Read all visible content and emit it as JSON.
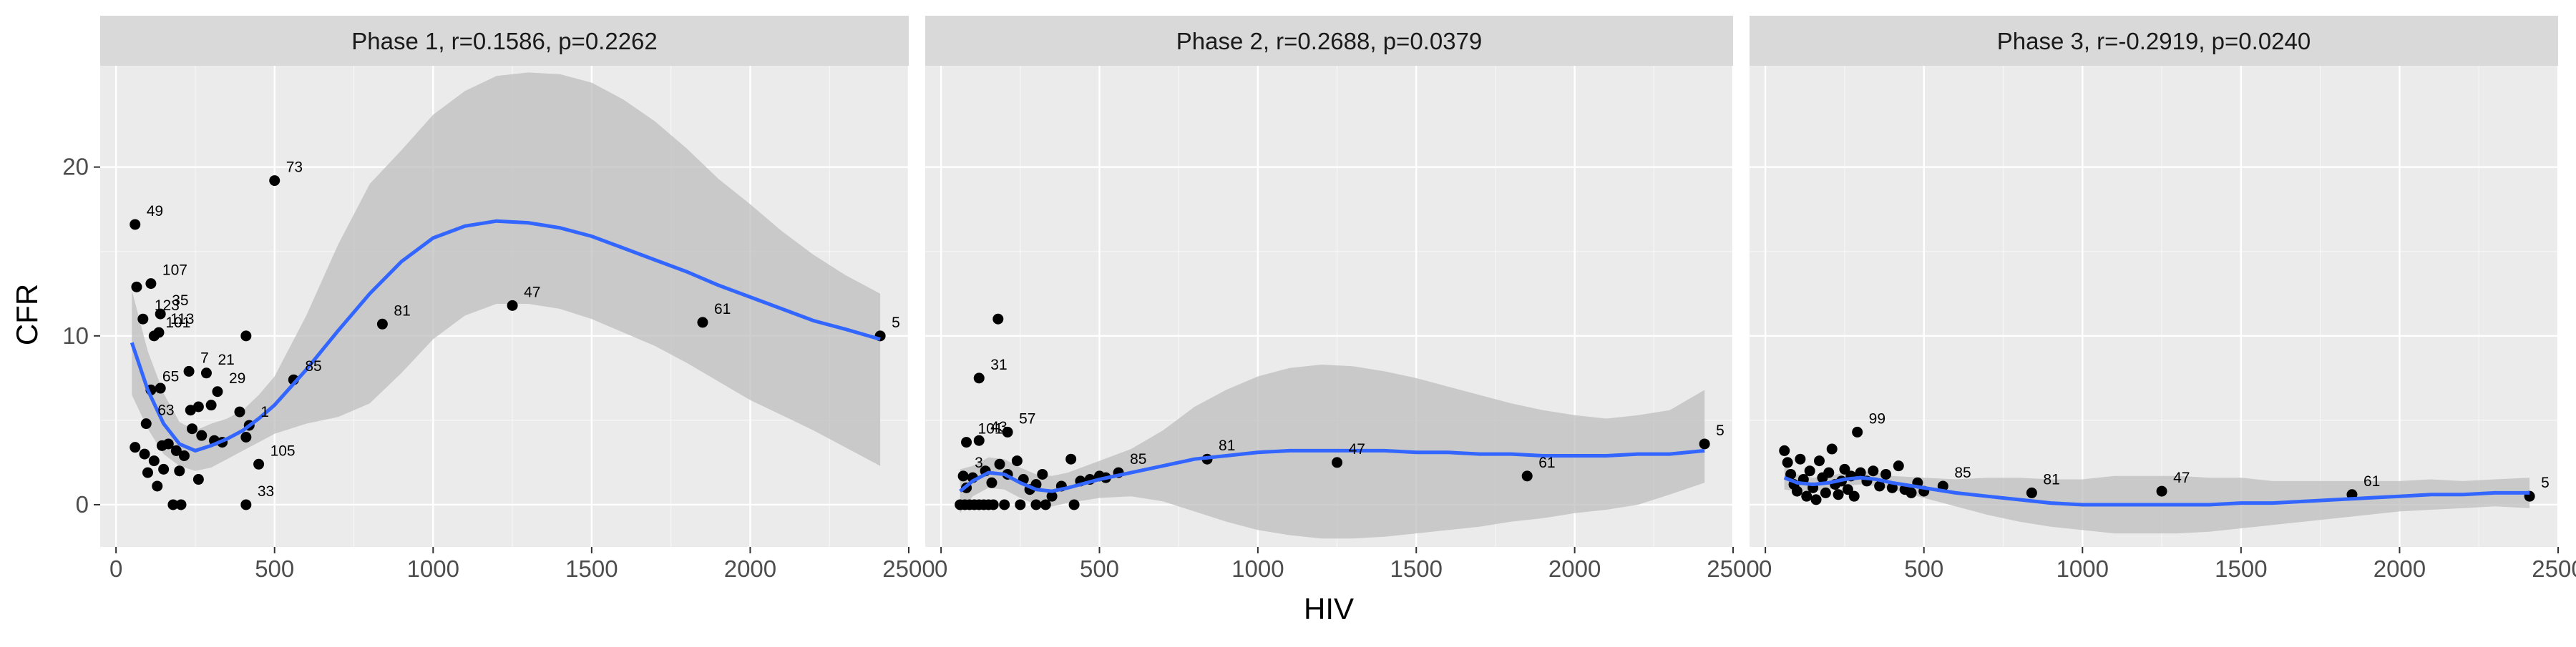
{
  "colors": {
    "panel_bg": "#ebebeb",
    "strip_bg": "#d9d9d9",
    "grid_major": "#ffffff",
    "points": "#000000",
    "smooth_line": "#3366ff",
    "ribbon": "#bdbdbd"
  },
  "chart_data": {
    "type": "scatter",
    "facet": "Phase",
    "xlabel": "HIV",
    "ylabel": "CFR",
    "xlim": [
      -50,
      2500
    ],
    "x_ticks": [
      0,
      500,
      1000,
      1500,
      2000,
      2500
    ],
    "y_ticks": [
      0,
      10,
      20
    ],
    "ylim": [
      -2.5,
      26
    ],
    "grid": true,
    "panels": [
      {
        "strip": "Phase 1, r=0.1586, p=0.2262",
        "points": [
          {
            "x": 60,
            "y": 16.6,
            "label": "49"
          },
          {
            "x": 500,
            "y": 19.2,
            "label": "73"
          },
          {
            "x": 110,
            "y": 13.1,
            "label": "107"
          },
          {
            "x": 65,
            "y": 12.9,
            "label": ""
          },
          {
            "x": 85,
            "y": 11.0,
            "label": "123"
          },
          {
            "x": 140,
            "y": 11.3,
            "label": "35"
          },
          {
            "x": 135,
            "y": 10.2,
            "label": "113"
          },
          {
            "x": 120,
            "y": 10.0,
            "label": "101"
          },
          {
            "x": 410,
            "y": 10.0,
            "label": ""
          },
          {
            "x": 230,
            "y": 7.9,
            "label": "7"
          },
          {
            "x": 285,
            "y": 7.8,
            "label": "21"
          },
          {
            "x": 110,
            "y": 6.8,
            "label": "65"
          },
          {
            "x": 140,
            "y": 6.9,
            "label": ""
          },
          {
            "x": 320,
            "y": 6.7,
            "label": "29"
          },
          {
            "x": 560,
            "y": 7.4,
            "label": "85"
          },
          {
            "x": 95,
            "y": 4.8,
            "label": "63"
          },
          {
            "x": 235,
            "y": 5.6,
            "label": ""
          },
          {
            "x": 260,
            "y": 5.8,
            "label": ""
          },
          {
            "x": 300,
            "y": 5.9,
            "label": ""
          },
          {
            "x": 390,
            "y": 5.5,
            "label": ""
          },
          {
            "x": 420,
            "y": 4.7,
            "label": "1"
          },
          {
            "x": 410,
            "y": 4.0,
            "label": ""
          },
          {
            "x": 60,
            "y": 3.4,
            "label": ""
          },
          {
            "x": 90,
            "y": 3.0,
            "label": ""
          },
          {
            "x": 120,
            "y": 2.6,
            "label": ""
          },
          {
            "x": 145,
            "y": 3.5,
            "label": ""
          },
          {
            "x": 165,
            "y": 3.6,
            "label": ""
          },
          {
            "x": 190,
            "y": 3.2,
            "label": ""
          },
          {
            "x": 215,
            "y": 2.9,
            "label": ""
          },
          {
            "x": 240,
            "y": 4.5,
            "label": ""
          },
          {
            "x": 270,
            "y": 4.1,
            "label": ""
          },
          {
            "x": 310,
            "y": 3.8,
            "label": ""
          },
          {
            "x": 335,
            "y": 3.7,
            "label": ""
          },
          {
            "x": 100,
            "y": 1.9,
            "label": ""
          },
          {
            "x": 150,
            "y": 2.1,
            "label": ""
          },
          {
            "x": 200,
            "y": 2.0,
            "label": ""
          },
          {
            "x": 260,
            "y": 1.5,
            "label": ""
          },
          {
            "x": 130,
            "y": 1.1,
            "label": ""
          },
          {
            "x": 180,
            "y": 0.0,
            "label": ""
          },
          {
            "x": 205,
            "y": 0.0,
            "label": ""
          },
          {
            "x": 450,
            "y": 2.4,
            "label": "105"
          },
          {
            "x": 410,
            "y": 0.0,
            "label": "33"
          },
          {
            "x": 840,
            "y": 10.7,
            "label": "81"
          },
          {
            "x": 1250,
            "y": 11.8,
            "label": "47"
          },
          {
            "x": 1850,
            "y": 10.8,
            "label": "61"
          },
          {
            "x": 2410,
            "y": 10.0,
            "label": "5"
          }
        ],
        "smooth": {
          "x": [
            50,
            100,
            150,
            200,
            250,
            300,
            350,
            400,
            450,
            500,
            600,
            700,
            800,
            900,
            1000,
            1100,
            1200,
            1300,
            1400,
            1500,
            1600,
            1700,
            1800,
            1900,
            2000,
            2100,
            2200,
            2300,
            2410
          ],
          "y": [
            9.6,
            6.8,
            4.8,
            3.6,
            3.2,
            3.5,
            3.9,
            4.4,
            5.1,
            5.9,
            8.0,
            10.3,
            12.5,
            14.4,
            15.8,
            16.5,
            16.8,
            16.7,
            16.4,
            15.9,
            15.2,
            14.5,
            13.8,
            13.0,
            12.3,
            11.6,
            10.9,
            10.4,
            9.8
          ],
          "lower": [
            6.5,
            4.5,
            3.0,
            2.3,
            2.0,
            2.2,
            2.7,
            3.2,
            3.7,
            4.2,
            4.8,
            5.2,
            6.0,
            7.8,
            9.8,
            11.2,
            11.9,
            11.9,
            11.6,
            11.0,
            10.2,
            9.4,
            8.4,
            7.3,
            6.2,
            5.3,
            4.4,
            3.4,
            2.3
          ],
          "upper": [
            12.7,
            9.1,
            6.6,
            4.9,
            4.4,
            4.8,
            5.1,
            5.6,
            6.5,
            7.6,
            11.2,
            15.4,
            19.0,
            21.0,
            23.1,
            24.5,
            25.4,
            25.6,
            25.5,
            25.0,
            24.0,
            22.7,
            21.1,
            19.3,
            17.8,
            16.2,
            14.8,
            13.6,
            12.5
          ]
        }
      },
      {
        "strip": "Phase 2, r=0.2688, p=0.0379",
        "points": [
          {
            "x": 180,
            "y": 11.0,
            "label": ""
          },
          {
            "x": 120,
            "y": 7.5,
            "label": "31"
          },
          {
            "x": 80,
            "y": 3.7,
            "label": "101"
          },
          {
            "x": 120,
            "y": 3.8,
            "label": "43"
          },
          {
            "x": 210,
            "y": 4.3,
            "label": "57"
          },
          {
            "x": 70,
            "y": 1.7,
            "label": "3"
          },
          {
            "x": 560,
            "y": 1.9,
            "label": "85"
          },
          {
            "x": 840,
            "y": 2.7,
            "label": "81"
          },
          {
            "x": 1250,
            "y": 2.5,
            "label": "47"
          },
          {
            "x": 1850,
            "y": 1.7,
            "label": "61"
          },
          {
            "x": 2410,
            "y": 3.6,
            "label": "5"
          },
          {
            "x": 60,
            "y": 0.0,
            "label": ""
          },
          {
            "x": 75,
            "y": 0.0,
            "label": ""
          },
          {
            "x": 90,
            "y": 0.0,
            "label": ""
          },
          {
            "x": 105,
            "y": 0.0,
            "label": ""
          },
          {
            "x": 120,
            "y": 0.0,
            "label": ""
          },
          {
            "x": 135,
            "y": 0.0,
            "label": ""
          },
          {
            "x": 150,
            "y": 0.0,
            "label": ""
          },
          {
            "x": 165,
            "y": 0.0,
            "label": ""
          },
          {
            "x": 200,
            "y": 0.0,
            "label": ""
          },
          {
            "x": 250,
            "y": 0.0,
            "label": ""
          },
          {
            "x": 300,
            "y": 0.0,
            "label": ""
          },
          {
            "x": 330,
            "y": 0.0,
            "label": ""
          },
          {
            "x": 420,
            "y": 0.0,
            "label": ""
          },
          {
            "x": 80,
            "y": 1.0,
            "label": ""
          },
          {
            "x": 100,
            "y": 1.6,
            "label": ""
          },
          {
            "x": 140,
            "y": 2.0,
            "label": ""
          },
          {
            "x": 160,
            "y": 1.3,
            "label": ""
          },
          {
            "x": 185,
            "y": 2.4,
            "label": ""
          },
          {
            "x": 210,
            "y": 1.8,
            "label": ""
          },
          {
            "x": 240,
            "y": 2.6,
            "label": ""
          },
          {
            "x": 260,
            "y": 1.5,
            "label": ""
          },
          {
            "x": 280,
            "y": 0.9,
            "label": ""
          },
          {
            "x": 300,
            "y": 1.2,
            "label": ""
          },
          {
            "x": 320,
            "y": 1.8,
            "label": ""
          },
          {
            "x": 350,
            "y": 0.5,
            "label": ""
          },
          {
            "x": 380,
            "y": 1.1,
            "label": ""
          },
          {
            "x": 410,
            "y": 2.7,
            "label": ""
          },
          {
            "x": 440,
            "y": 1.4,
            "label": ""
          },
          {
            "x": 470,
            "y": 1.5,
            "label": ""
          },
          {
            "x": 500,
            "y": 1.7,
            "label": ""
          },
          {
            "x": 520,
            "y": 1.6,
            "label": ""
          }
        ],
        "smooth": {
          "x": [
            60,
            100,
            150,
            200,
            250,
            300,
            350,
            400,
            500,
            600,
            700,
            800,
            900,
            1000,
            1100,
            1200,
            1300,
            1400,
            1500,
            1600,
            1700,
            1800,
            1900,
            2000,
            2100,
            2200,
            2300,
            2410
          ],
          "y": [
            0.8,
            1.4,
            1.9,
            1.8,
            1.3,
            0.9,
            0.8,
            1.0,
            1.5,
            1.9,
            2.3,
            2.7,
            2.9,
            3.1,
            3.2,
            3.2,
            3.2,
            3.2,
            3.1,
            3.1,
            3.0,
            3.0,
            2.9,
            2.9,
            2.9,
            3.0,
            3.0,
            3.2
          ],
          "lower": [
            -0.5,
            0.5,
            1.0,
            0.9,
            0.4,
            0.0,
            -0.1,
            0.1,
            0.4,
            0.5,
            0.2,
            -0.4,
            -1.0,
            -1.5,
            -1.8,
            -2.0,
            -2.0,
            -1.9,
            -1.7,
            -1.5,
            -1.3,
            -1.0,
            -0.8,
            -0.5,
            -0.3,
            0.0,
            0.6,
            1.3
          ],
          "upper": [
            2.1,
            2.3,
            2.8,
            2.7,
            2.2,
            1.8,
            1.7,
            1.9,
            2.6,
            3.3,
            4.4,
            5.8,
            6.8,
            7.6,
            8.1,
            8.3,
            8.2,
            7.9,
            7.5,
            7.0,
            6.5,
            6.0,
            5.6,
            5.3,
            5.1,
            5.3,
            5.6,
            6.8
          ]
        }
      },
      {
        "strip": "Phase 3, r=-0.2919, p=0.0240",
        "points": [
          {
            "x": 290,
            "y": 4.3,
            "label": "99"
          },
          {
            "x": 560,
            "y": 1.1,
            "label": "85"
          },
          {
            "x": 840,
            "y": 0.7,
            "label": "81"
          },
          {
            "x": 1250,
            "y": 0.8,
            "label": "47"
          },
          {
            "x": 1850,
            "y": 0.6,
            "label": "61"
          },
          {
            "x": 2410,
            "y": 0.5,
            "label": "5"
          },
          {
            "x": 60,
            "y": 3.2,
            "label": ""
          },
          {
            "x": 70,
            "y": 2.5,
            "label": ""
          },
          {
            "x": 80,
            "y": 1.8,
            "label": ""
          },
          {
            "x": 90,
            "y": 1.2,
            "label": ""
          },
          {
            "x": 100,
            "y": 0.8,
            "label": ""
          },
          {
            "x": 110,
            "y": 2.7,
            "label": ""
          },
          {
            "x": 120,
            "y": 1.5,
            "label": ""
          },
          {
            "x": 130,
            "y": 0.5,
            "label": ""
          },
          {
            "x": 140,
            "y": 2.0,
            "label": ""
          },
          {
            "x": 150,
            "y": 1.0,
            "label": ""
          },
          {
            "x": 160,
            "y": 0.3,
            "label": ""
          },
          {
            "x": 170,
            "y": 2.6,
            "label": ""
          },
          {
            "x": 180,
            "y": 1.6,
            "label": ""
          },
          {
            "x": 190,
            "y": 0.7,
            "label": ""
          },
          {
            "x": 200,
            "y": 1.9,
            "label": ""
          },
          {
            "x": 210,
            "y": 3.3,
            "label": ""
          },
          {
            "x": 220,
            "y": 1.2,
            "label": ""
          },
          {
            "x": 230,
            "y": 0.6,
            "label": ""
          },
          {
            "x": 240,
            "y": 1.4,
            "label": ""
          },
          {
            "x": 250,
            "y": 2.1,
            "label": ""
          },
          {
            "x": 260,
            "y": 0.9,
            "label": ""
          },
          {
            "x": 270,
            "y": 1.7,
            "label": ""
          },
          {
            "x": 280,
            "y": 0.5,
            "label": ""
          },
          {
            "x": 300,
            "y": 1.9,
            "label": ""
          },
          {
            "x": 320,
            "y": 1.4,
            "label": ""
          },
          {
            "x": 340,
            "y": 2.0,
            "label": ""
          },
          {
            "x": 360,
            "y": 1.1,
            "label": ""
          },
          {
            "x": 380,
            "y": 1.8,
            "label": ""
          },
          {
            "x": 400,
            "y": 1.0,
            "label": ""
          },
          {
            "x": 420,
            "y": 2.3,
            "label": ""
          },
          {
            "x": 440,
            "y": 0.9,
            "label": ""
          },
          {
            "x": 460,
            "y": 0.7,
            "label": ""
          },
          {
            "x": 480,
            "y": 1.3,
            "label": ""
          },
          {
            "x": 500,
            "y": 0.8,
            "label": ""
          }
        ],
        "smooth": {
          "x": [
            60,
            100,
            150,
            200,
            250,
            300,
            350,
            400,
            500,
            600,
            700,
            800,
            900,
            1000,
            1100,
            1200,
            1300,
            1400,
            1500,
            1600,
            1700,
            1800,
            1900,
            2000,
            2100,
            2200,
            2300,
            2410
          ],
          "y": [
            1.6,
            1.3,
            1.2,
            1.3,
            1.5,
            1.6,
            1.5,
            1.3,
            1.0,
            0.7,
            0.5,
            0.3,
            0.1,
            0.0,
            0.0,
            0.0,
            0.0,
            0.0,
            0.1,
            0.1,
            0.2,
            0.3,
            0.4,
            0.5,
            0.6,
            0.6,
            0.7,
            0.7
          ],
          "lower": [
            0.9,
            0.8,
            0.8,
            0.9,
            1.1,
            1.2,
            1.1,
            0.9,
            0.4,
            -0.1,
            -0.6,
            -1.0,
            -1.3,
            -1.5,
            -1.7,
            -1.7,
            -1.7,
            -1.6,
            -1.4,
            -1.2,
            -1.0,
            -0.8,
            -0.6,
            -0.4,
            -0.3,
            -0.2,
            -0.1,
            -0.2
          ],
          "upper": [
            2.3,
            1.8,
            1.6,
            1.7,
            1.9,
            2.0,
            1.9,
            1.7,
            1.6,
            1.5,
            1.6,
            1.6,
            1.5,
            1.5,
            1.7,
            1.7,
            1.7,
            1.6,
            1.6,
            1.4,
            1.4,
            1.4,
            1.4,
            1.4,
            1.5,
            1.4,
            1.5,
            1.6
          ]
        }
      }
    ]
  }
}
